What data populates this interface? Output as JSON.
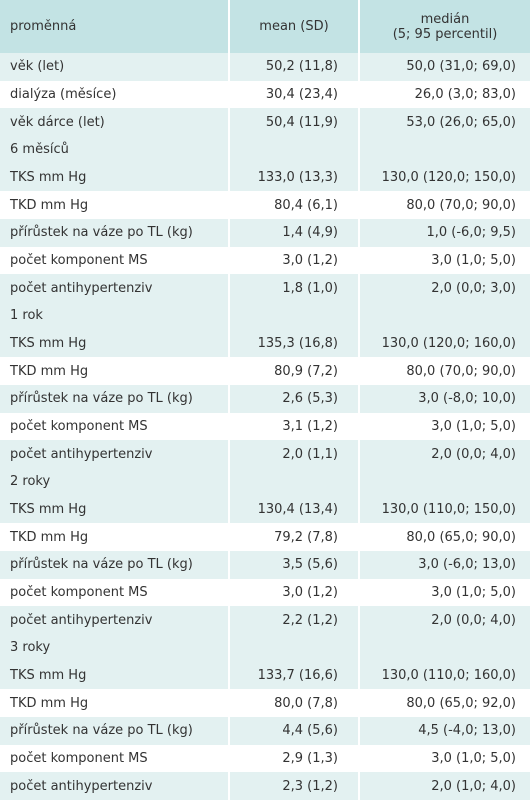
{
  "table": {
    "header": [
      "proměnná",
      "mean (SD)",
      "medián",
      "(5; 95 percentil)"
    ],
    "rows": [
      [
        "věk (let)",
        "50,2 (11,8)",
        "50,0 (31,0; 69,0)"
      ],
      [
        "dialýza (měsíce)",
        "30,4 (23,4)",
        "26,0 (3,0; 83,0)"
      ],
      [
        "věk dárce (let)",
        "50,4 (11,9)",
        "53,0 (26,0; 65,0)"
      ],
      [
        "6 měsíců"
      ],
      [
        "TKS mm Hg",
        "133,0 (13,3)",
        "130,0 (120,0; 150,0)"
      ],
      [
        "TKD mm Hg",
        "80,4 (6,1)",
        "80,0 (70,0; 90,0)"
      ],
      [
        "přírůstek na váze po TL (kg)",
        "1,4 (4,9)",
        "1,0 (-6,0; 9,5)"
      ],
      [
        "počet komponent MS",
        "3,0 (1,2)",
        "3,0 (1,0; 5,0)"
      ],
      [
        "počet antihypertenziv",
        "1,8 (1,0)",
        "2,0 (0,0; 3,0)"
      ],
      [
        "1 rok"
      ],
      [
        "TKS mm Hg",
        "135,3 (16,8)",
        "130,0 (120,0; 160,0)"
      ],
      [
        "TKD mm Hg",
        "80,9 (7,2)",
        "80,0 (70,0; 90,0)"
      ],
      [
        "přírůstek na váze po TL (kg)",
        "2,6 (5,3)",
        "3,0 (-8,0; 10,0)"
      ],
      [
        "počet komponent MS",
        "3,1 (1,2)",
        "3,0 (1,0; 5,0)"
      ],
      [
        "počet antihypertenziv",
        "2,0 (1,1)",
        "2,0 (0,0; 4,0)"
      ],
      [
        "2 roky"
      ],
      [
        "TKS mm Hg",
        "130,4 (13,4)",
        "130,0 (110,0; 150,0)"
      ],
      [
        "TKD mm Hg",
        "79,2 (7,8)",
        "80,0 (65,0; 90,0)"
      ],
      [
        "přírůstek na váze po TL (kg)",
        "3,5 (5,6)",
        "3,0 (-6,0; 13,0)"
      ],
      [
        "počet komponent MS",
        "3,0 (1,2)",
        "3,0 (1,0; 5,0)"
      ],
      [
        "počet antihypertenziv",
        "2,2 (1,2)",
        "2,0 (0,0; 4,0)"
      ],
      [
        "3 roky"
      ],
      [
        "TKS mm Hg",
        "133,7 (16,6)",
        "130,0 (110,0; 160,0)"
      ],
      [
        "TKD mm Hg",
        "80,0 (7,8)",
        "80,0 (65,0; 92,0)"
      ],
      [
        "přírůstek na váze po TL (kg)",
        "4,4 (5,6)",
        "4,5 (-4,0; 13,0)"
      ],
      [
        "počet komponent MS",
        "2,9 (1,3)",
        "3,0 (1,0; 5,0)"
      ],
      [
        "počet antihypertenziv",
        "2,3 (1,2)",
        "2,0 (1,0; 4,0)"
      ]
    ]
  }
}
